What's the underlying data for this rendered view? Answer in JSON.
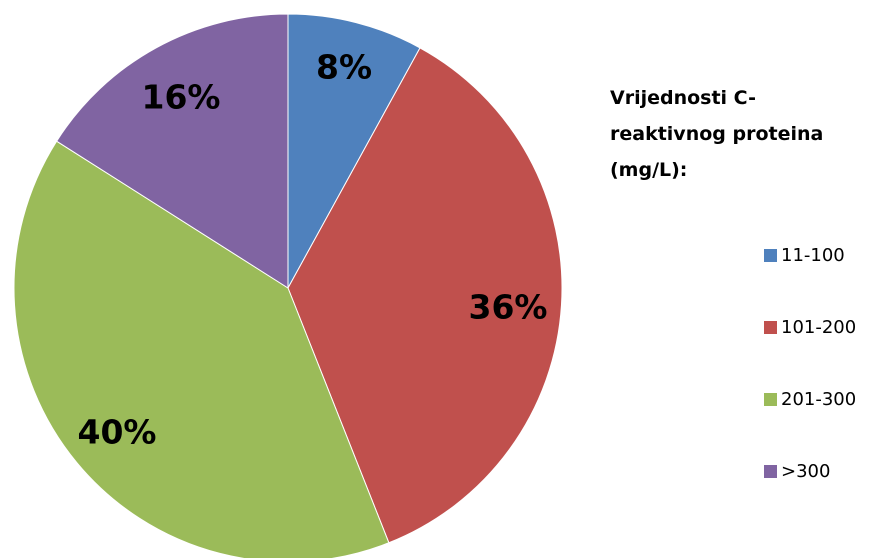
{
  "chart_data": {
    "type": "pie",
    "legend_title": [
      "Vrijednosti C-",
      "reaktivnog proteina",
      "(mg/L):"
    ],
    "legend_position": "right",
    "slices": [
      {
        "name": "11-100",
        "value": 8,
        "label": "8%",
        "color": "#4F81BD"
      },
      {
        "name": "101-200",
        "value": 36,
        "label": "36%",
        "color": "#C0504D"
      },
      {
        "name": "201-300",
        "value": 40,
        "label": "40%",
        "color": "#9BBB59"
      },
      {
        "name": ">300",
        "value": 16,
        "label": "16%",
        "color": "#8064A2"
      }
    ]
  }
}
